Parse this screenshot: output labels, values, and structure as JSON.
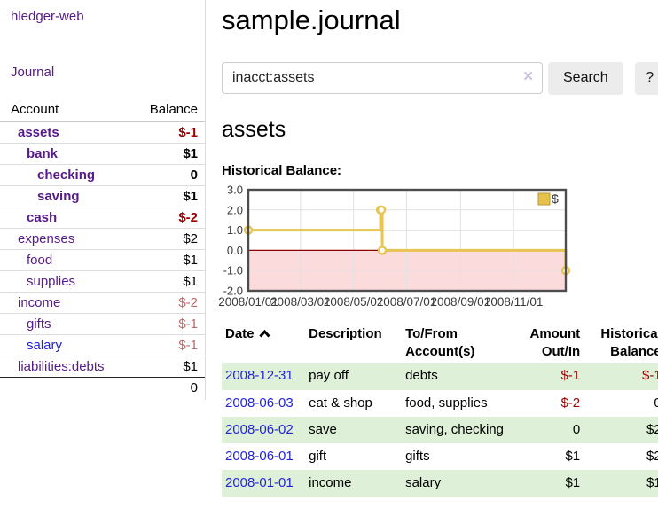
{
  "sidebar": {
    "brand": "hledger-web",
    "nav": {
      "journal_label": "Journal"
    },
    "accounts": {
      "headers": {
        "account": "Account",
        "balance": "Balance"
      },
      "rows": [
        {
          "account": "assets",
          "balance": "$-1"
        },
        {
          "account": "bank",
          "balance": "$1"
        },
        {
          "account": "checking",
          "balance": "0"
        },
        {
          "account": "saving",
          "balance": "$1"
        },
        {
          "account": "cash",
          "balance": "$-2"
        },
        {
          "account": "expenses",
          "balance": "$2"
        },
        {
          "account": "food",
          "balance": "$1"
        },
        {
          "account": "supplies",
          "balance": "$1"
        },
        {
          "account": "income",
          "balance": "$-2"
        },
        {
          "account": "gifts",
          "balance": "$-1"
        },
        {
          "account": "salary",
          "balance": "$-1"
        },
        {
          "account": "liabilities:debts",
          "balance": "$1"
        }
      ],
      "total": "0"
    }
  },
  "main": {
    "title": "sample.journal",
    "search": {
      "value": "inacct:assets",
      "clear_icon": "✕",
      "search_button": "Search",
      "help_button": "?"
    },
    "account_heading": "assets",
    "chart_label": "Historical Balance:",
    "register": {
      "headers": {
        "date": "Date",
        "description": "Description",
        "accounts": "To/From Account(s)",
        "amount": "Amount Out/In",
        "balance": "Historical Balance"
      },
      "rows": [
        {
          "date": "2008-12-31",
          "description": "pay off",
          "accounts": "debts",
          "amount": "$-1",
          "balance": "$-1"
        },
        {
          "date": "2008-06-03",
          "description": "eat & shop",
          "accounts": "food, supplies",
          "amount": "$-2",
          "balance": "0"
        },
        {
          "date": "2008-06-02",
          "description": "save",
          "accounts": "saving, checking",
          "amount": "0",
          "balance": "$2"
        },
        {
          "date": "2008-06-01",
          "description": "gift",
          "accounts": "gifts",
          "amount": "$1",
          "balance": "$2"
        },
        {
          "date": "2008-01-01",
          "description": "income",
          "accounts": "salary",
          "amount": "$1",
          "balance": "$1"
        }
      ]
    }
  },
  "chart_data": {
    "type": "line",
    "step": true,
    "title": "Historical Balance:",
    "legend": {
      "label": "$",
      "position": "top-right"
    },
    "ylim": [
      -2,
      3
    ],
    "xlim_days": [
      0,
      365
    ],
    "y_ticks": [
      "3.0",
      "2.0",
      "1.0",
      "0.0",
      "-1.0",
      "-2.0"
    ],
    "y_tick_values": [
      3,
      2,
      1,
      0,
      -1,
      -2
    ],
    "x_ticks": [
      {
        "label": "2008/01/01",
        "day": 0
      },
      {
        "label": "2008/03/01",
        "day": 60
      },
      {
        "label": "2008/05/01",
        "day": 121
      },
      {
        "label": "2008/07/01",
        "day": 182
      },
      {
        "label": "2008/09/01",
        "day": 244
      },
      {
        "label": "2008/11/01",
        "day": 305
      }
    ],
    "series": [
      {
        "name": "$",
        "points": [
          {
            "date": "2008-01-01",
            "day": 0,
            "value": 1
          },
          {
            "date": "2008-06-01",
            "day": 152,
            "value": 2
          },
          {
            "date": "2008-06-02",
            "day": 153,
            "value": 2
          },
          {
            "date": "2008-06-03",
            "day": 154,
            "value": 0
          },
          {
            "date": "2008-12-31",
            "day": 365,
            "value": -1
          }
        ]
      }
    ],
    "colors": {
      "line": "#e8c452",
      "marker_fill": "#ffffff",
      "negative_region": "#fbdbdb",
      "zero_line": "#8b0000",
      "grid": "#e2e2e2",
      "border": "#4d4d4d",
      "tick_text": "#3a3a3a",
      "legend_swatch": "#e6c24a",
      "legend_swatch_border": "#b89a30"
    }
  }
}
